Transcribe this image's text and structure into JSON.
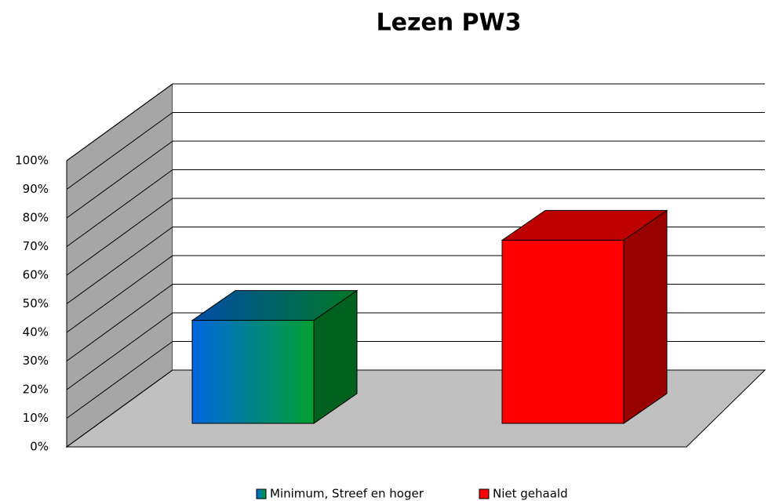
{
  "chart_data": {
    "type": "bar3d",
    "title": "Lezen PW3",
    "series": [
      {
        "name": "Minimum, Streef en hoger",
        "color": [
          "#0066e0",
          "#00a030"
        ],
        "values": [
          36
        ]
      },
      {
        "name": "Niet gehaald",
        "color": "#ff0000",
        "values": [
          64
        ]
      }
    ],
    "ylim": [
      0,
      100
    ],
    "yticks": [
      {
        "value": 0,
        "label": "0%"
      },
      {
        "value": 10,
        "label": "10%"
      },
      {
        "value": 20,
        "label": "20%"
      },
      {
        "value": 30,
        "label": "30%"
      },
      {
        "value": 40,
        "label": "40%"
      },
      {
        "value": 50,
        "label": "50%"
      },
      {
        "value": 60,
        "label": "60%"
      },
      {
        "value": 70,
        "label": "70%"
      },
      {
        "value": 80,
        "label": "80%"
      },
      {
        "value": 90,
        "label": "90%"
      },
      {
        "value": 100,
        "label": "100%"
      }
    ],
    "grid": true,
    "legend": "bottom"
  }
}
